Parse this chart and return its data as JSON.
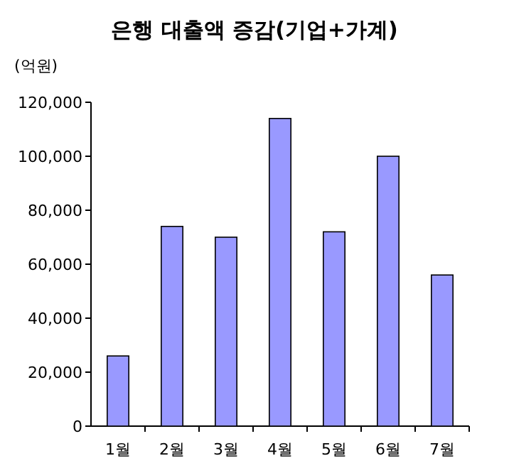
{
  "chart_data": {
    "type": "bar",
    "title": "은행 대출액 증감(기업+가계)",
    "ylabel": "(억원)",
    "categories": [
      "1월",
      "2월",
      "3월",
      "4월",
      "5월",
      "6월",
      "7월"
    ],
    "values": [
      26000,
      74000,
      70000,
      114000,
      72000,
      100000,
      56000
    ],
    "color": "#9999ff",
    "ylim": [
      0,
      120000
    ],
    "yticks": [
      {
        "value": 0,
        "label": "0"
      },
      {
        "value": 20000,
        "label": "20,000"
      },
      {
        "value": 40000,
        "label": "40,000"
      },
      {
        "value": 60000,
        "label": "60,000"
      },
      {
        "value": 80000,
        "label": "80,000"
      },
      {
        "value": 100000,
        "label": "100,000"
      },
      {
        "value": 120000,
        "label": "120,000"
      }
    ],
    "grid": false
  }
}
